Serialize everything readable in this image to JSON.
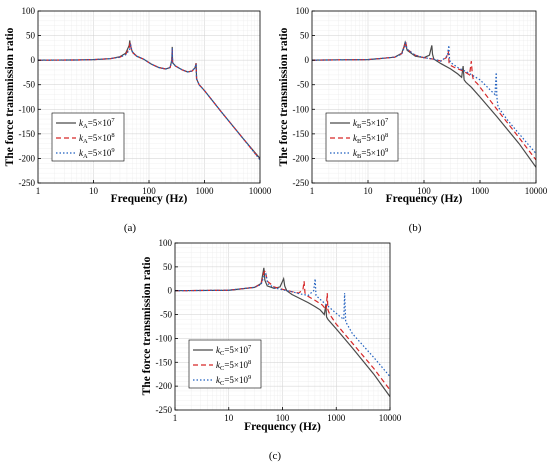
{
  "chart_data": [
    {
      "type": "line",
      "panel_label": "(a)",
      "xlabel": "Frequency (Hz)",
      "ylabel": "The force transmission ratio",
      "x_scale": "log",
      "xlim": [
        1,
        10000
      ],
      "ylim": [
        -250,
        100
      ],
      "x_ticks": [
        "1",
        "10",
        "100",
        "1000",
        "10000"
      ],
      "y_ticks": [
        "100",
        "50",
        "0",
        "-50",
        "-100",
        "-150",
        "-200",
        "-250"
      ],
      "grid": true,
      "legend_position": "lower-left",
      "series": [
        {
          "name_sym": "k",
          "name_sub": "A",
          "name_rest": "=5×10",
          "name_exp": "7",
          "color": "#4a4a4a",
          "dash": "solid",
          "x": [
            1,
            5,
            10,
            20,
            30,
            38,
            44,
            45,
            46,
            50,
            60,
            80,
            110,
            150,
            200,
            240,
            258,
            262,
            266,
            300,
            400,
            500,
            600,
            680,
            705,
            720,
            800,
            1000,
            2000,
            5000,
            10000
          ],
          "y": [
            0,
            0.3,
            1,
            3,
            7,
            14,
            30,
            40,
            30,
            17,
            8,
            2,
            -8,
            -15,
            -18,
            -15,
            0,
            27,
            -5,
            -12,
            -20,
            -24,
            -22,
            -15,
            -6,
            -38,
            -50,
            -62,
            -105,
            -160,
            -200
          ]
        },
        {
          "name_sym": "k",
          "name_sub": "A",
          "name_rest": "=5×10",
          "name_exp": "8",
          "color": "#d62728",
          "dash": "5,3",
          "x": [
            1,
            5,
            10,
            20,
            30,
            38,
            44,
            46,
            48,
            50,
            60,
            80,
            110,
            150,
            200,
            240,
            258,
            262,
            266,
            300,
            400,
            500,
            600,
            680,
            705,
            720,
            800,
            1000,
            2000,
            5000,
            10000
          ],
          "y": [
            0,
            0.3,
            1,
            3,
            6,
            12,
            24,
            36,
            22,
            16,
            8,
            2,
            -8,
            -15,
            -18,
            -15,
            0,
            25,
            -5,
            -12,
            -20,
            -24,
            -22,
            -15,
            -7,
            -38,
            -50,
            -62,
            -105,
            -160,
            -202
          ]
        },
        {
          "name_sym": "k",
          "name_sub": "A",
          "name_rest": "=5×10",
          "name_exp": "9",
          "color": "#1f5fbf",
          "dash": "1.5,2",
          "x": [
            1,
            5,
            10,
            20,
            30,
            38,
            44,
            47,
            49,
            52,
            60,
            80,
            110,
            150,
            200,
            240,
            258,
            262,
            266,
            300,
            400,
            500,
            600,
            680,
            705,
            720,
            800,
            1000,
            2000,
            5000,
            10000
          ],
          "y": [
            0,
            0.3,
            1,
            3,
            6,
            11,
            20,
            30,
            20,
            14,
            8,
            2,
            -8,
            -15,
            -18,
            -15,
            0,
            24,
            -5,
            -12,
            -20,
            -24,
            -22,
            -15,
            -8,
            -38,
            -50,
            -62,
            -105,
            -160,
            -203
          ]
        }
      ]
    },
    {
      "type": "line",
      "panel_label": "(b)",
      "xlabel": "Frequency (Hz)",
      "ylabel": "The force transmission ratio",
      "x_scale": "log",
      "xlim": [
        1,
        10000
      ],
      "ylim": [
        -250,
        100
      ],
      "x_ticks": [
        "1",
        "10",
        "100",
        "1000",
        "10000"
      ],
      "y_ticks": [
        "100",
        "50",
        "0",
        "-50",
        "-100",
        "-150",
        "-200",
        "-250"
      ],
      "grid": true,
      "legend_position": "lower-left",
      "series": [
        {
          "name_sym": "k",
          "name_sub": "B",
          "name_rest": "=5×10",
          "name_exp": "7",
          "color": "#4a4a4a",
          "dash": "solid",
          "x": [
            1,
            10,
            30,
            40,
            44,
            46,
            50,
            70,
            100,
            125,
            138,
            142,
            150,
            200,
            300,
            400,
            470,
            500,
            520,
            560,
            700,
            1000,
            2000,
            5000,
            10000
          ],
          "y": [
            0,
            1,
            6,
            14,
            28,
            36,
            20,
            8,
            5,
            10,
            30,
            12,
            2,
            -7,
            -18,
            -28,
            -35,
            -12,
            -40,
            -45,
            -55,
            -75,
            -115,
            -170,
            -218
          ]
        },
        {
          "name_sym": "k",
          "name_sub": "B",
          "name_rest": "=5×10",
          "name_exp": "8",
          "color": "#d62728",
          "dash": "5,3",
          "x": [
            1,
            10,
            30,
            40,
            44,
            47,
            50,
            70,
            100,
            150,
            200,
            250,
            272,
            280,
            290,
            350,
            500,
            650,
            700,
            730,
            760,
            900,
            1000,
            2000,
            5000,
            10000
          ],
          "y": [
            0,
            1,
            6,
            13,
            26,
            38,
            22,
            10,
            5,
            2,
            -2,
            5,
            18,
            -5,
            -10,
            -15,
            -22,
            -30,
            -2,
            -30,
            -40,
            -48,
            -55,
            -100,
            -158,
            -203
          ]
        },
        {
          "name_sym": "k",
          "name_sub": "B",
          "name_rest": "=5×10",
          "name_exp": "9",
          "color": "#1f5fbf",
          "dash": "1.5,2",
          "x": [
            1,
            10,
            30,
            40,
            44,
            47,
            50,
            70,
            100,
            150,
            200,
            260,
            278,
            286,
            300,
            400,
            600,
            1000,
            1500,
            1850,
            1950,
            2000,
            2100,
            3000,
            5000,
            10000
          ],
          "y": [
            0,
            1,
            6,
            12,
            24,
            34,
            22,
            10,
            5,
            2,
            -2,
            8,
            30,
            0,
            -5,
            -15,
            -25,
            -40,
            -60,
            -70,
            -25,
            -75,
            -95,
            -120,
            -150,
            -190
          ]
        }
      ]
    },
    {
      "type": "line",
      "panel_label": "(c)",
      "xlabel": "Frequency (Hz)",
      "ylabel": "The force transmission ratio",
      "x_scale": "log",
      "xlim": [
        1,
        10000
      ],
      "ylim": [
        -250,
        100
      ],
      "x_ticks": [
        "1",
        "10",
        "100",
        "1000",
        "10000"
      ],
      "y_ticks": [
        "100",
        "50",
        "0",
        "-50",
        "-100",
        "-150",
        "-200",
        "-250"
      ],
      "grid": true,
      "legend_position": "lower-left",
      "series": [
        {
          "name_sym": "k",
          "name_sub": "C",
          "name_rest": "=5×10",
          "name_exp": "7",
          "color": "#4a4a4a",
          "dash": "solid",
          "x": [
            1,
            10,
            30,
            40,
            45,
            47,
            52,
            70,
            90,
            105,
            110,
            120,
            150,
            200,
            300,
            400,
            500,
            600,
            640,
            660,
            700,
            1000,
            2000,
            5000,
            10000
          ],
          "y": [
            0,
            1,
            7,
            15,
            48,
            22,
            10,
            5,
            8,
            25,
            10,
            0,
            -8,
            -15,
            -25,
            -33,
            -40,
            -50,
            -30,
            -55,
            -60,
            -80,
            -120,
            -175,
            -222
          ]
        },
        {
          "name_sym": "k",
          "name_sub": "C",
          "name_rest": "=5×10",
          "name_exp": "8",
          "color": "#d62728",
          "dash": "5,3",
          "x": [
            1,
            10,
            30,
            40,
            45,
            48,
            52,
            70,
            100,
            150,
            200,
            240,
            252,
            262,
            300,
            400,
            550,
            650,
            680,
            700,
            760,
            1000,
            2000,
            5000,
            10000
          ],
          "y": [
            0,
            1,
            7,
            14,
            38,
            42,
            20,
            8,
            3,
            -2,
            -5,
            2,
            20,
            -5,
            -12,
            -20,
            -30,
            -40,
            -5,
            -40,
            -50,
            -70,
            -110,
            -163,
            -208
          ]
        },
        {
          "name_sym": "k",
          "name_sub": "C",
          "name_rest": "=5×10",
          "name_exp": "9",
          "color": "#1f5fbf",
          "dash": "1.5,2",
          "x": [
            1,
            10,
            30,
            40,
            45,
            49,
            53,
            70,
            100,
            150,
            200,
            300,
            380,
            405,
            420,
            500,
            800,
            1200,
            1380,
            1430,
            1500,
            2000,
            5000,
            10000
          ],
          "y": [
            0,
            1,
            7,
            13,
            30,
            35,
            15,
            6,
            2,
            -2,
            -6,
            -10,
            0,
            25,
            -10,
            -18,
            -38,
            -55,
            -60,
            -5,
            -65,
            -90,
            -140,
            -180
          ]
        }
      ]
    }
  ]
}
